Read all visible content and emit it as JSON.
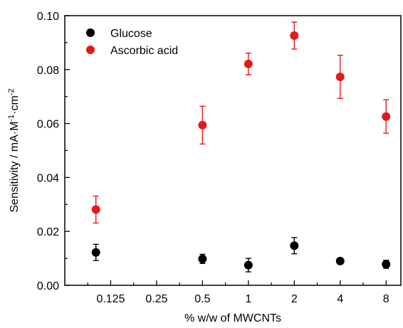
{
  "chart_data": {
    "type": "scatter",
    "x_scale": "log2",
    "x_tick_labels": [
      "0.125",
      "0.25",
      "0.5",
      "1",
      "2",
      "4",
      "8"
    ],
    "x_ticks": [
      0.125,
      0.25,
      0.5,
      1,
      2,
      4,
      8
    ],
    "y_ticks": [
      0.0,
      0.02,
      0.04,
      0.06,
      0.08,
      0.1
    ],
    "y_tick_labels": [
      "0.00",
      "0.02",
      "0.04",
      "0.06",
      "0.08",
      "0.10"
    ],
    "xlim": [
      0.0625,
      10
    ],
    "ylim": [
      0,
      0.1
    ],
    "xlabel": "% w/w of MWCNTs",
    "ylabel_main": "Sensitivity / mA·M",
    "ylabel_sup1": "-1",
    "ylabel_mid": "·cm",
    "ylabel_sup2": "-2",
    "legend_position": "top-left",
    "series": [
      {
        "name": "Glucose",
        "color": "#000000",
        "x": [
          0.1,
          0.5,
          1,
          2,
          4,
          8
        ],
        "y": [
          0.0122,
          0.0098,
          0.0075,
          0.0147,
          0.009,
          0.0078
        ],
        "err": [
          0.003,
          0.0017,
          0.0025,
          0.003,
          0.0005,
          0.0015
        ]
      },
      {
        "name": "Ascorbic acid",
        "color": "#e31a1c",
        "x": [
          0.1,
          0.5,
          1,
          2,
          4,
          8
        ],
        "y": [
          0.0281,
          0.0594,
          0.0821,
          0.0926,
          0.0773,
          0.0626
        ],
        "err": [
          0.005,
          0.007,
          0.004,
          0.005,
          0.008,
          0.0062
        ]
      }
    ]
  }
}
